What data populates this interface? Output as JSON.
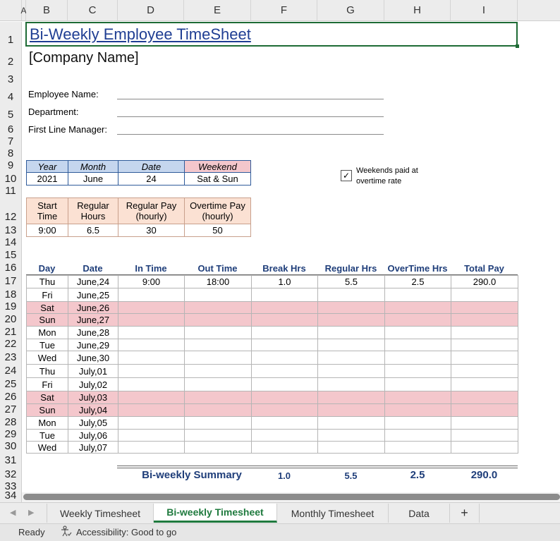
{
  "columns": [
    "A",
    "B",
    "C",
    "D",
    "E",
    "F",
    "G",
    "H",
    "I"
  ],
  "rows": [
    "1",
    "2",
    "3",
    "4",
    "5",
    "6",
    "7",
    "8",
    "9",
    "10",
    "11",
    "12",
    "13",
    "14",
    "15",
    "16",
    "17",
    "18",
    "19",
    "20",
    "21",
    "22",
    "23",
    "24",
    "25",
    "26",
    "27",
    "28",
    "29",
    "30",
    "31",
    "32",
    "33",
    "34"
  ],
  "title": "Bi-Weekly Employee TimeSheet",
  "company": "[Company Name]",
  "employee_fields": [
    "Employee Name:",
    "Department:",
    "First Line Manager:"
  ],
  "info_table": {
    "headers": [
      "Year",
      "Month",
      "Date",
      "Weekend"
    ],
    "values": [
      "2021",
      "June",
      "24",
      "Sat & Sun"
    ]
  },
  "checkbox": {
    "checked_glyph": "✓",
    "label_line1": "Weekends paid at",
    "label_line2": "overtime rate"
  },
  "pay_table": {
    "headers": [
      [
        "Start",
        "Time"
      ],
      [
        "Regular",
        "Hours"
      ],
      [
        "Regular Pay",
        "(hourly)"
      ],
      [
        "Overtime Pay",
        "(hourly)"
      ]
    ],
    "values": [
      "9:00",
      "6.5",
      "30",
      "50"
    ]
  },
  "timesheet": {
    "headers": [
      "Day",
      "Date",
      "In Time",
      "Out Time",
      "Break Hrs",
      "Regular Hrs",
      "OverTime Hrs",
      "Total Pay"
    ],
    "rows": [
      {
        "day": "Thu",
        "date": "June,24",
        "in": "9:00",
        "out": "18:00",
        "brk": "1.0",
        "reg": "5.5",
        "ot": "2.5",
        "pay": "290.0",
        "weekend": false
      },
      {
        "day": "Fri",
        "date": "June,25",
        "in": "",
        "out": "",
        "brk": "",
        "reg": "",
        "ot": "",
        "pay": "",
        "weekend": false
      },
      {
        "day": "Sat",
        "date": "June,26",
        "in": "",
        "out": "",
        "brk": "",
        "reg": "",
        "ot": "",
        "pay": "",
        "weekend": true
      },
      {
        "day": "Sun",
        "date": "June,27",
        "in": "",
        "out": "",
        "brk": "",
        "reg": "",
        "ot": "",
        "pay": "",
        "weekend": true
      },
      {
        "day": "Mon",
        "date": "June,28",
        "in": "",
        "out": "",
        "brk": "",
        "reg": "",
        "ot": "",
        "pay": "",
        "weekend": false
      },
      {
        "day": "Tue",
        "date": "June,29",
        "in": "",
        "out": "",
        "brk": "",
        "reg": "",
        "ot": "",
        "pay": "",
        "weekend": false
      },
      {
        "day": "Wed",
        "date": "June,30",
        "in": "",
        "out": "",
        "brk": "",
        "reg": "",
        "ot": "",
        "pay": "",
        "weekend": false
      },
      {
        "day": "Thu",
        "date": "July,01",
        "in": "",
        "out": "",
        "brk": "",
        "reg": "",
        "ot": "",
        "pay": "",
        "weekend": false
      },
      {
        "day": "Fri",
        "date": "July,02",
        "in": "",
        "out": "",
        "brk": "",
        "reg": "",
        "ot": "",
        "pay": "",
        "weekend": false
      },
      {
        "day": "Sat",
        "date": "July,03",
        "in": "",
        "out": "",
        "brk": "",
        "reg": "",
        "ot": "",
        "pay": "",
        "weekend": true
      },
      {
        "day": "Sun",
        "date": "July,04",
        "in": "",
        "out": "",
        "brk": "",
        "reg": "",
        "ot": "",
        "pay": "",
        "weekend": true
      },
      {
        "day": "Mon",
        "date": "July,05",
        "in": "",
        "out": "",
        "brk": "",
        "reg": "",
        "ot": "",
        "pay": "",
        "weekend": false
      },
      {
        "day": "Tue",
        "date": "July,06",
        "in": "",
        "out": "",
        "brk": "",
        "reg": "",
        "ot": "",
        "pay": "",
        "weekend": false
      },
      {
        "day": "Wed",
        "date": "July,07",
        "in": "",
        "out": "",
        "brk": "",
        "reg": "",
        "ot": "",
        "pay": "",
        "weekend": false
      }
    ]
  },
  "summary": {
    "label": "Bi-weekly Summary",
    "brk": "1.0",
    "reg": "5.5",
    "ot": "2.5",
    "pay": "290.0"
  },
  "sheet_tabs": [
    "Weekly Timesheet",
    "Bi-weekly Timesheet",
    "Monthly Timesheet",
    "Data"
  ],
  "active_tab": "Bi-weekly Timesheet",
  "add_sheet": "+",
  "status": {
    "ready": "Ready",
    "accessibility": "Accessibility: Good to go"
  },
  "colors": {
    "weekend": "#f4c7cc",
    "header_blue": "#c5d6ee",
    "header_peach": "#fbe1d3",
    "tab_active": "#1f7a3e"
  }
}
